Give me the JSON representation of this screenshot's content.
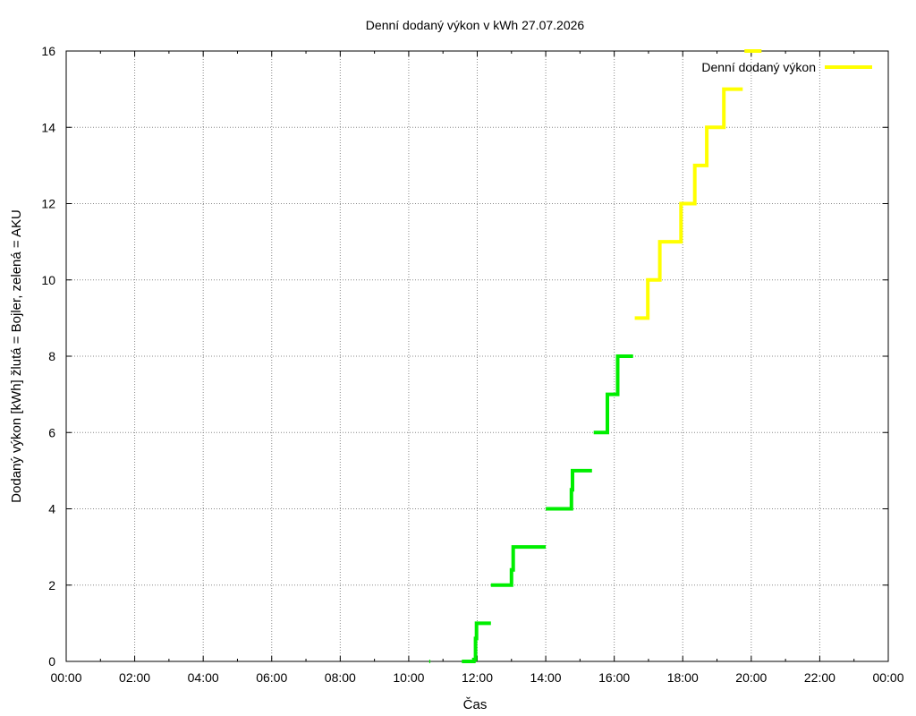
{
  "chart_data": {
    "type": "line",
    "title": "Denní dodaný výkon v kWh 27.07.2026",
    "xlabel": "Čas",
    "ylabel": "Dodaný výkon [kWh]  žlutá = Bojler, zelená = AKU",
    "xlim": [
      0,
      24
    ],
    "ylim": [
      0,
      16
    ],
    "x_ticks": [
      "00:00",
      "02:00",
      "04:00",
      "06:00",
      "08:00",
      "10:00",
      "12:00",
      "14:00",
      "16:00",
      "18:00",
      "20:00",
      "22:00",
      "00:00"
    ],
    "y_ticks": [
      "0",
      "2",
      "4",
      "6",
      "8",
      "10",
      "12",
      "14",
      "16"
    ],
    "grid": true,
    "legend": {
      "label": "Denní dodaný výkon",
      "position": "top-right"
    },
    "colors": {
      "bojler": "#ffff00",
      "aku": "#00ee00"
    },
    "series": [
      {
        "color": "aku",
        "segments": [
          [
            [
              10.6,
              0
            ],
            [
              10.63,
              0
            ]
          ],
          [
            [
              11.55,
              0
            ],
            [
              11.9,
              0
            ],
            [
              11.9,
              0.05
            ],
            [
              11.95,
              0.05
            ],
            [
              11.95,
              0.6
            ],
            [
              11.98,
              0.6
            ],
            [
              11.98,
              1
            ],
            [
              12.4,
              1
            ]
          ],
          [
            [
              12.4,
              2
            ],
            [
              13.0,
              2
            ],
            [
              13.0,
              2.4
            ],
            [
              13.05,
              2.4
            ],
            [
              13.05,
              3
            ],
            [
              14.0,
              3
            ]
          ],
          [
            [
              14.0,
              4
            ],
            [
              14.75,
              4
            ],
            [
              14.75,
              4.5
            ],
            [
              14.78,
              4.5
            ],
            [
              14.78,
              5
            ],
            [
              15.35,
              5
            ]
          ],
          [
            [
              15.4,
              6
            ],
            [
              15.8,
              6
            ],
            [
              15.8,
              7
            ],
            [
              16.1,
              7
            ],
            [
              16.1,
              8
            ],
            [
              16.55,
              8
            ]
          ]
        ]
      },
      {
        "color": "bojler",
        "segments": [
          [
            [
              16.6,
              9
            ],
            [
              16.98,
              9
            ],
            [
              16.98,
              10
            ],
            [
              17.33,
              10
            ],
            [
              17.33,
              11
            ],
            [
              17.95,
              11
            ],
            [
              17.95,
              12
            ],
            [
              18.35,
              12
            ],
            [
              18.35,
              13
            ],
            [
              18.7,
              13
            ],
            [
              18.7,
              14
            ],
            [
              19.2,
              14
            ],
            [
              19.2,
              15
            ],
            [
              19.75,
              15
            ]
          ],
          [
            [
              19.8,
              16
            ],
            [
              20.3,
              16
            ]
          ]
        ]
      }
    ]
  }
}
